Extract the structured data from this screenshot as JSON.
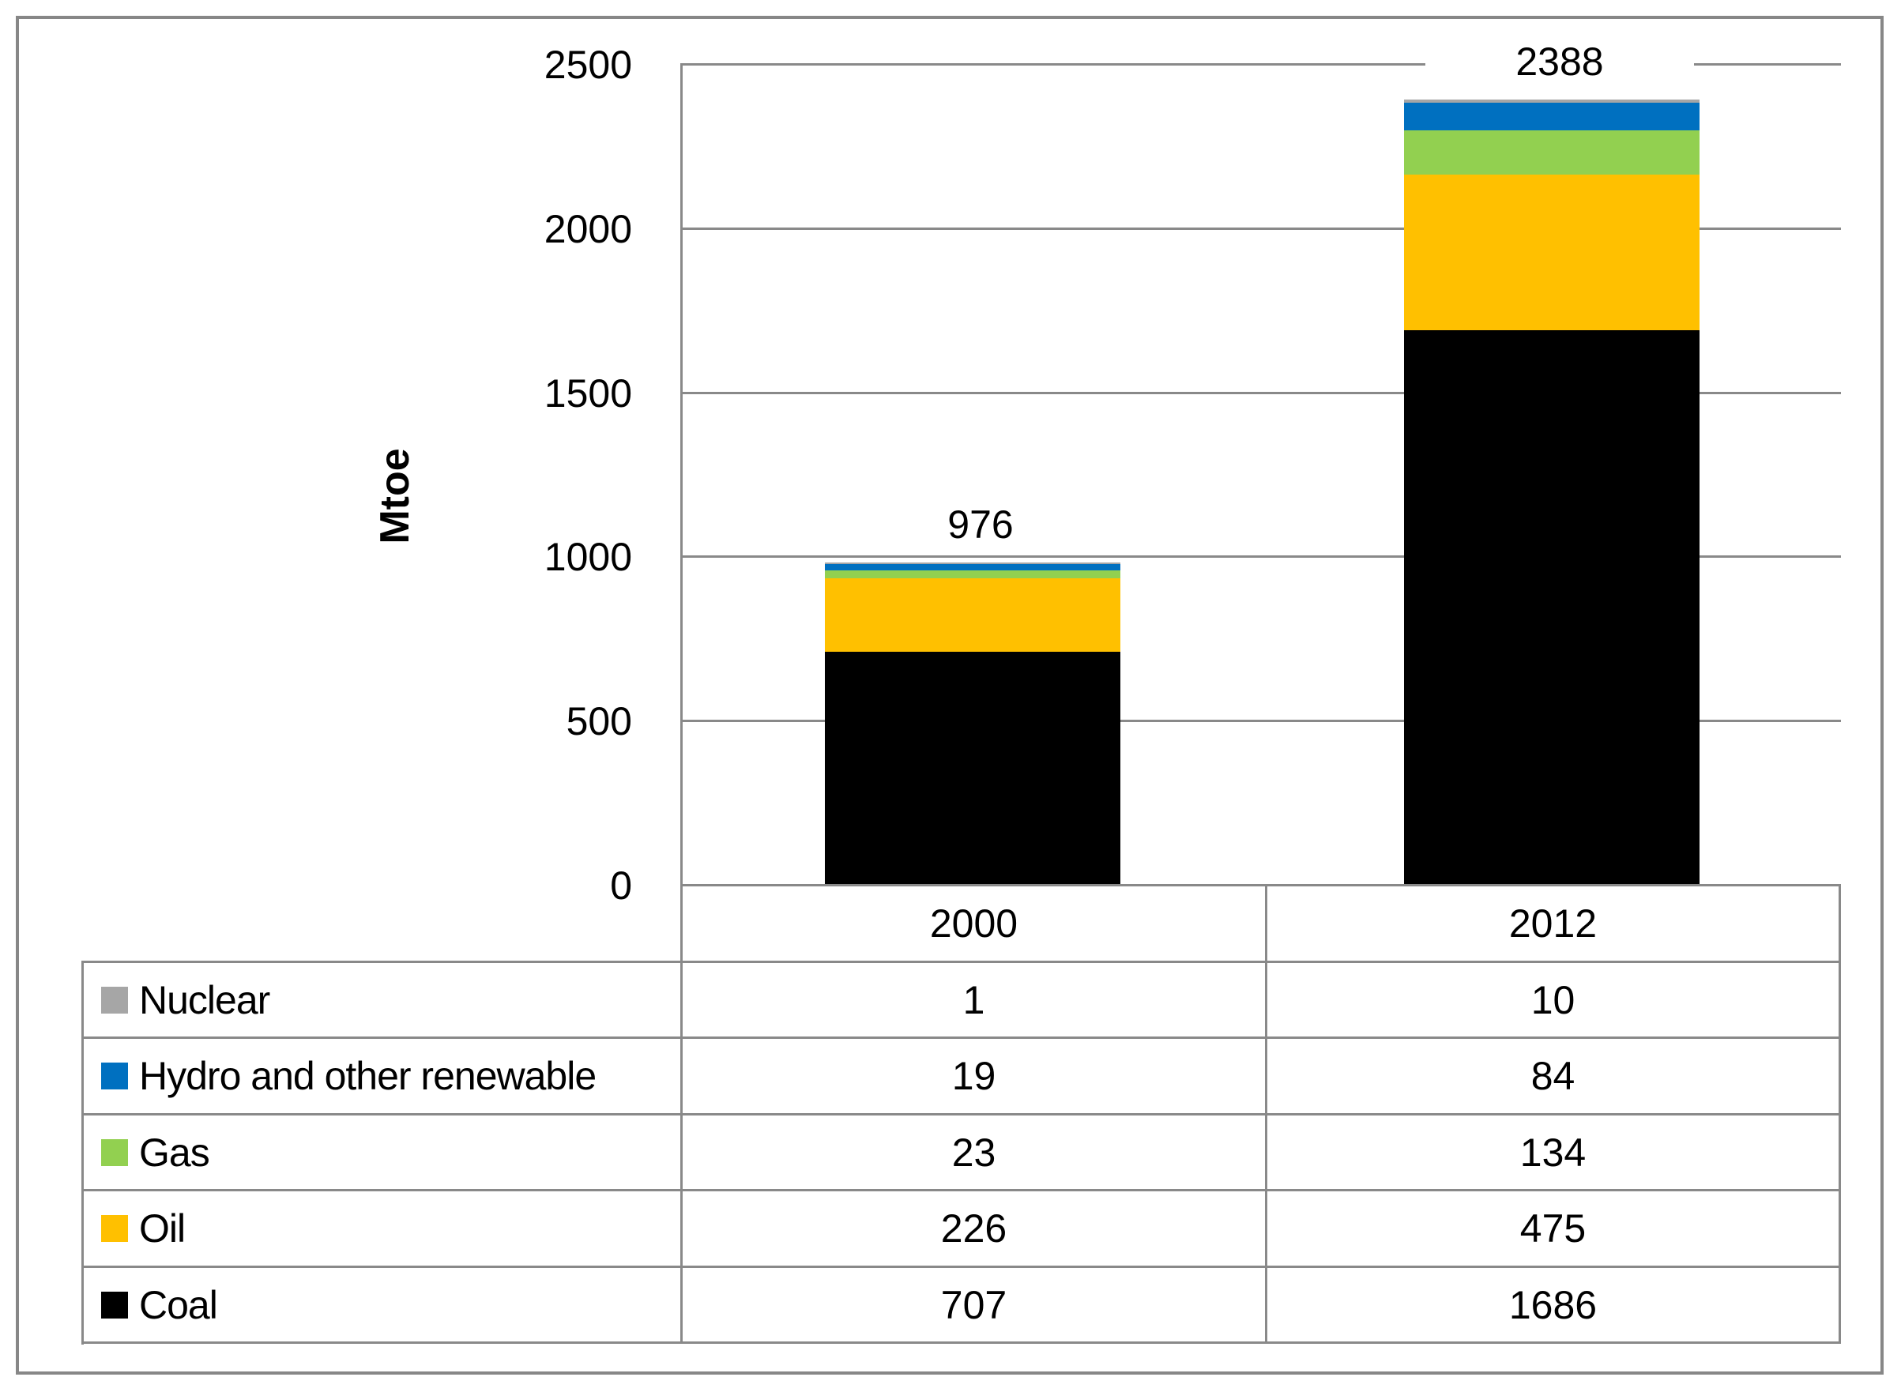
{
  "chart_data": {
    "type": "bar",
    "stacked": true,
    "ylabel": "Mtoe",
    "ylim": [
      0,
      2500
    ],
    "yticks": [
      0,
      500,
      1000,
      1500,
      2000,
      2500
    ],
    "grid": true,
    "legend_position": "table-bottom",
    "categories": [
      "2000",
      "2012"
    ],
    "totals": [
      "976",
      "2388"
    ],
    "series": [
      {
        "name": "Coal",
        "color": "#000000",
        "values": [
          707,
          1686
        ]
      },
      {
        "name": "Oil",
        "color": "#FFC000",
        "values": [
          226,
          475
        ]
      },
      {
        "name": "Gas",
        "color": "#92D050",
        "values": [
          23,
          134
        ]
      },
      {
        "name": "Hydro and other renewable",
        "color": "#0070C0",
        "values": [
          19,
          84
        ]
      },
      {
        "name": "Nuclear",
        "color": "#A6A6A6",
        "values": [
          1,
          10
        ]
      }
    ],
    "table_row_order_top_to_bottom": [
      "Nuclear",
      "Hydro and other renewable",
      "Gas",
      "Oil",
      "Coal"
    ]
  },
  "colors": {
    "gridline": "#898989",
    "outer_frame": "#878787",
    "text": "#000000",
    "background": "#FFFFFF"
  }
}
